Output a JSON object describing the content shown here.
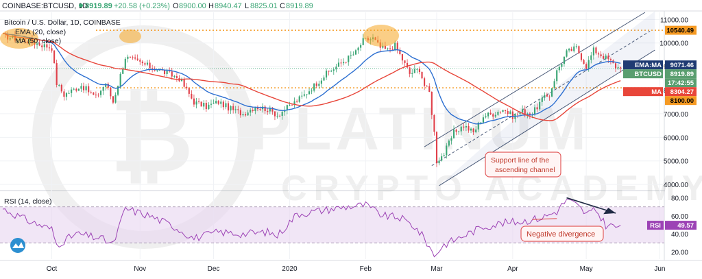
{
  "header": {
    "symbol": "COINBASE:BTCUSD, 1D",
    "last": "8919.89",
    "change": "+20.58 (+0.23%)",
    "o_label": "O",
    "o_value": "8900.00",
    "h_label": "H",
    "h_value": "8940.47",
    "l_label": "L",
    "l_value": "8825.01",
    "c_label": "C",
    "c_value": "8919.89"
  },
  "price_pane": {
    "title": "Bitcoin / U.S. Dollar, 1D, COINBASE",
    "ma20_label": "EMA (20, close)",
    "ma50_label": "MA (50, close)"
  },
  "rsi_pane": {
    "label": "RSI (14, close)"
  },
  "watermark": {
    "line1": "PLATINUM",
    "line2": "CRYPTO ACADEMY"
  },
  "annotations": {
    "support": [
      "Support line of the",
      "ascending channel"
    ],
    "divergence": "Negative divergence"
  },
  "price_tags": [
    {
      "text": "10540.49",
      "value": 10540.49,
      "color": "#f59a23",
      "fg": "#000000"
    },
    {
      "text": "EMA:MA",
      "text2": "9071.46",
      "value": 9071.46,
      "color": "#1f3b73",
      "fg": "#ffffff"
    },
    {
      "text": "BTCUSD",
      "text2": "8919.89",
      "value": 8919.89,
      "color": "#5a9e6f",
      "fg": "#ffffff"
    },
    {
      "text": "17:42:55",
      "value": 8610,
      "color": "#5a9e6f",
      "fg": "#ffffff"
    },
    {
      "text": "MA",
      "text2": "8304.27",
      "value": 8304.27,
      "color": "#e8463a",
      "fg": "#ffffff"
    },
    {
      "text": "8100.00",
      "value": 8100,
      "color": "#f59a23",
      "fg": "#000000"
    }
  ],
  "rsi_tag": {
    "text": "RSI",
    "text2": "49.57",
    "value": 49.57,
    "color": "#9c42b5"
  },
  "colors": {
    "up": "#3aa574",
    "down": "#e0404a",
    "ema": "#2c6fd1",
    "ma": "#e8463a",
    "rsi": "#9c42b5",
    "level": "#f59a23"
  },
  "chart_data": [
    {
      "type": "candlestick",
      "title": "Bitcoin / U.S. Dollar, 1D, COINBASE",
      "ylim": [
        3800,
        11300
      ],
      "y_ticks": [
        4000,
        5000,
        6000,
        7000,
        8000,
        9000,
        10000,
        11000
      ],
      "x_ticks": [
        "Oct",
        "Nov",
        "Dec",
        "2020",
        "Feb",
        "Mar",
        "Apr",
        "May",
        "Jun"
      ],
      "horizontal_levels": [
        10540.49,
        8100
      ],
      "series": [
        {
          "name": "EMA (20, close)",
          "last": 9071.46
        },
        {
          "name": "MA (50, close)",
          "last": 8304.27
        }
      ],
      "price_path": [
        [
          0,
          10300
        ],
        [
          10,
          10100
        ],
        [
          20,
          9800
        ],
        [
          22,
          8300
        ],
        [
          25,
          7800
        ],
        [
          32,
          8200
        ],
        [
          38,
          7700
        ],
        [
          42,
          8300
        ],
        [
          45,
          7500
        ],
        [
          50,
          9400
        ],
        [
          55,
          9200
        ],
        [
          60,
          9000
        ],
        [
          65,
          8800
        ],
        [
          72,
          8500
        ],
        [
          78,
          7500
        ],
        [
          83,
          7300
        ],
        [
          88,
          7500
        ],
        [
          93,
          7200
        ],
        [
          98,
          7000
        ],
        [
          103,
          7300
        ],
        [
          108,
          7200
        ],
        [
          112,
          6950
        ],
        [
          118,
          7400
        ],
        [
          123,
          7800
        ],
        [
          127,
          8200
        ],
        [
          132,
          8700
        ],
        [
          136,
          9000
        ],
        [
          140,
          9300
        ],
        [
          144,
          9600
        ],
        [
          147,
          10100
        ],
        [
          151,
          10200
        ],
        [
          154,
          9800
        ],
        [
          157,
          9700
        ],
        [
          160,
          9900
        ],
        [
          163,
          9300
        ],
        [
          166,
          8700
        ],
        [
          170,
          8900
        ],
        [
          172,
          8200
        ],
        [
          174,
          7900
        ],
        [
          176,
          6200
        ],
        [
          177,
          5000
        ],
        [
          180,
          5300
        ],
        [
          184,
          6200
        ],
        [
          188,
          6500
        ],
        [
          192,
          6200
        ],
        [
          196,
          6900
        ],
        [
          200,
          7000
        ],
        [
          204,
          7200
        ],
        [
          208,
          6900
        ],
        [
          212,
          7100
        ],
        [
          216,
          7000
        ],
        [
          220,
          7600
        ],
        [
          223,
          7800
        ],
        [
          226,
          8800
        ],
        [
          230,
          9600
        ],
        [
          234,
          9800
        ],
        [
          238,
          9000
        ],
        [
          241,
          9700
        ],
        [
          244,
          9500
        ],
        [
          247,
          9300
        ],
        [
          250,
          9000
        ],
        [
          252,
          8920
        ]
      ]
    },
    {
      "type": "line",
      "name": "RSI (14, close)",
      "ylim": [
        12,
        85
      ],
      "y_ticks": [
        20,
        40,
        60,
        80
      ],
      "bands": [
        30,
        70
      ],
      "last": 49.57,
      "values_path": [
        [
          0,
          68
        ],
        [
          10,
          55
        ],
        [
          20,
          45
        ],
        [
          22,
          28
        ],
        [
          30,
          40
        ],
        [
          40,
          35
        ],
        [
          45,
          28
        ],
        [
          50,
          68
        ],
        [
          60,
          60
        ],
        [
          70,
          48
        ],
        [
          78,
          35
        ],
        [
          88,
          42
        ],
        [
          98,
          40
        ],
        [
          108,
          42
        ],
        [
          112,
          38
        ],
        [
          120,
          62
        ],
        [
          130,
          66
        ],
        [
          140,
          70
        ],
        [
          148,
          72
        ],
        [
          155,
          60
        ],
        [
          162,
          58
        ],
        [
          168,
          48
        ],
        [
          172,
          35
        ],
        [
          176,
          16
        ],
        [
          180,
          28
        ],
        [
          188,
          38
        ],
        [
          196,
          48
        ],
        [
          204,
          52
        ],
        [
          212,
          54
        ],
        [
          220,
          58
        ],
        [
          226,
          65
        ],
        [
          230,
          78
        ],
        [
          234,
          72
        ],
        [
          238,
          62
        ],
        [
          242,
          66
        ],
        [
          246,
          50
        ],
        [
          250,
          48
        ],
        [
          252,
          49.57
        ]
      ]
    }
  ]
}
